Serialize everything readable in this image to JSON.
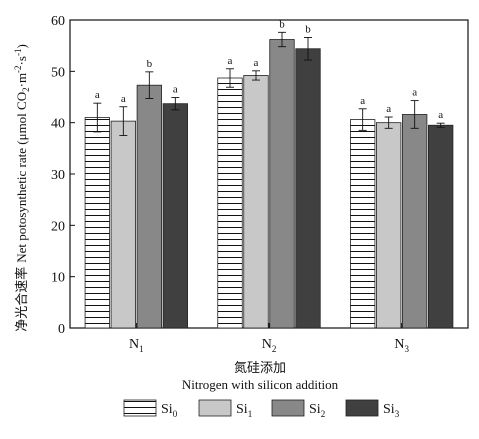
{
  "chart_data": {
    "type": "bar",
    "ylabel": "净光合速率 Net potosynthetic rate (μmol CO2·m-2·s-1)",
    "ylabel_cn": "净光合速率",
    "ylabel_en": "Net potosynthetic rate (μmol CO",
    "ylabel_unit_mid": "·m",
    "ylabel_unit_mid2": "·s",
    "ylabel_end": ")",
    "ylabel_sub": "2",
    "ylabel_sup1": "-2",
    "ylabel_sup2": "-1",
    "xlabel_cn": "氮硅添加",
    "xlabel_en": "Nitrogen with silicon addition",
    "ylim": [
      0,
      60
    ],
    "yticks": [
      0,
      10,
      20,
      30,
      40,
      50,
      60
    ],
    "categories": [
      {
        "base": "N",
        "sub": "1"
      },
      {
        "base": "N",
        "sub": "2"
      },
      {
        "base": "N",
        "sub": "3"
      }
    ],
    "series": [
      {
        "name": "Si",
        "sub": "0",
        "values": [
          41.0,
          48.7,
          40.6
        ],
        "errors": [
          2.8,
          1.8,
          2.1
        ],
        "letters": [
          "a",
          "a",
          "a"
        ],
        "fill": "#ffffff",
        "pattern": "hlines"
      },
      {
        "name": "Si",
        "sub": "1",
        "values": [
          40.3,
          49.2,
          40.0
        ],
        "errors": [
          2.8,
          0.9,
          1.1
        ],
        "letters": [
          "a",
          "a",
          "a"
        ],
        "fill": "#c8c8c8",
        "pattern": "none"
      },
      {
        "name": "Si",
        "sub": "2",
        "values": [
          47.3,
          56.2,
          41.6
        ],
        "errors": [
          2.6,
          1.4,
          2.7
        ],
        "letters": [
          "b",
          "b",
          "a"
        ],
        "fill": "#888888",
        "pattern": "none"
      },
      {
        "name": "Si",
        "sub": "3",
        "values": [
          43.7,
          54.4,
          39.5
        ],
        "errors": [
          1.2,
          2.2,
          0.4
        ],
        "letters": [
          "a",
          "b",
          "a"
        ],
        "fill": "#404040",
        "pattern": "none"
      }
    ],
    "legend_position": "bottom"
  }
}
